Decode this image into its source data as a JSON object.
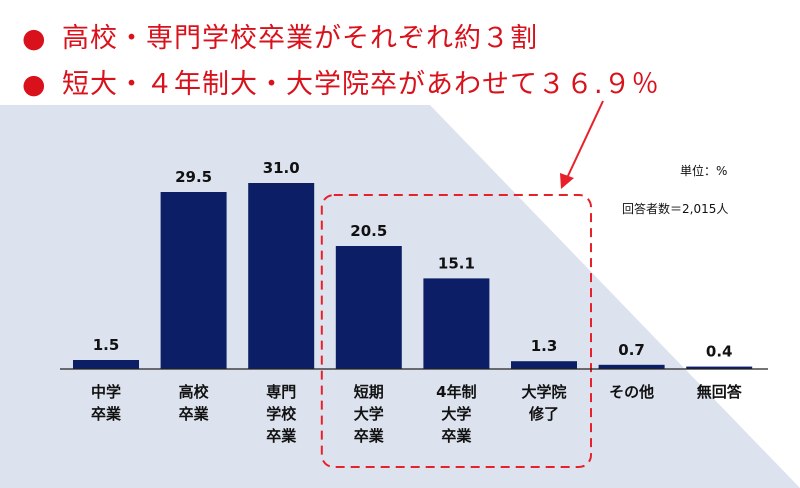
{
  "headlines": {
    "line1": "高校・専門学校卒業がそれぞれ約３割",
    "line2": "短大・４年制大・大学院卒があわせて３６.９％",
    "bullet": "●"
  },
  "notes": {
    "unit": "単位：%",
    "respondents": "回答者数＝2,015人"
  },
  "colors": {
    "bar": "#0c1f66",
    "highlight": "#e8202a",
    "background_wedge": "#dde3ee"
  },
  "chart_data": {
    "type": "bar",
    "title": "",
    "xlabel": "",
    "ylabel": "",
    "ylim": [
      0,
      35
    ],
    "grid": false,
    "categories": [
      [
        "中学",
        "卒業"
      ],
      [
        "高校",
        "卒業"
      ],
      [
        "専門",
        "学校",
        "卒業"
      ],
      [
        "短期",
        "大学",
        "卒業"
      ],
      [
        "4年制",
        "大学",
        "卒業"
      ],
      [
        "大学院",
        "修了"
      ],
      [
        "その他"
      ],
      [
        "無回答"
      ]
    ],
    "values": [
      1.5,
      29.5,
      31.0,
      20.5,
      15.1,
      1.3,
      0.7,
      0.4
    ],
    "value_labels": [
      "1.5",
      "29.5",
      "31.0",
      "20.5",
      "15.1",
      "1.3",
      "0.7",
      "0.4"
    ],
    "highlighted_categories": [
      3,
      4,
      5
    ]
  }
}
